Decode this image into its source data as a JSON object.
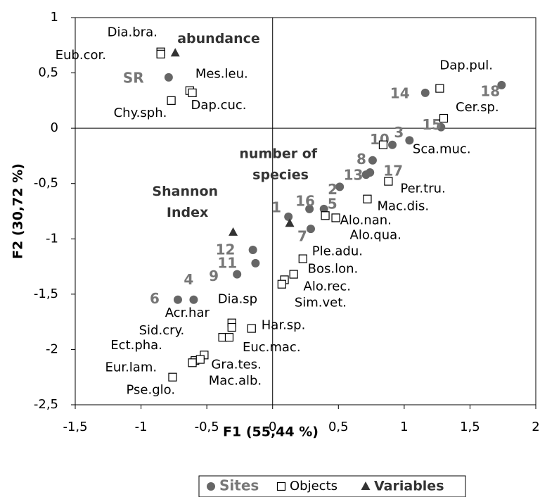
{
  "chart_data": {
    "type": "scatter",
    "xlabel": "F1 (55,44 %)",
    "ylabel": "F2 (30,72 %)",
    "xlim": [
      -1.5,
      2
    ],
    "ylim": [
      -2.5,
      1
    ],
    "xticks": [
      {
        "value": -1.5,
        "label": "-1,5"
      },
      -1,
      {
        "value": -0.5,
        "label": "-0,5"
      },
      0,
      {
        "value": 0.5,
        "label": "0,5"
      },
      1,
      {
        "value": 1.5,
        "label": "1,5"
      },
      2
    ],
    "yticks": [
      {
        "value": -2.5,
        "label": "-2,5"
      },
      -2,
      {
        "value": -1.5,
        "label": "-1,5"
      },
      -1,
      {
        "value": -0.5,
        "label": "-0,5"
      },
      0,
      {
        "value": 0.5,
        "label": "0,5"
      },
      1
    ],
    "legend": "bottom",
    "series": [
      {
        "name": "Sites",
        "color": "#666666",
        "marker": "circle",
        "labels": [
          "SR",
          "14",
          "18",
          "15",
          "3",
          "10",
          "8",
          "13",
          "17",
          "2",
          "16",
          "5",
          "1",
          "7",
          "12",
          "11",
          "9",
          "4",
          "6"
        ],
        "x": [
          -0.79,
          1.16,
          1.74,
          1.28,
          1.04,
          0.91,
          0.76,
          0.71,
          0.74,
          0.51,
          0.28,
          0.39,
          0.12,
          0.29,
          -0.15,
          -0.13,
          -0.27,
          -0.6,
          -0.72
        ],
        "values": [
          0.46,
          0.32,
          0.39,
          0.01,
          -0.11,
          -0.15,
          -0.29,
          -0.42,
          -0.4,
          -0.53,
          -0.73,
          -0.73,
          -0.8,
          -0.91,
          -1.1,
          -1.22,
          -1.32,
          -1.55,
          -1.55
        ]
      },
      {
        "name": "Objects",
        "color": "#000000",
        "marker": "square",
        "labels": [
          "Dia.bra.",
          "Eub.cor.",
          "Mes.leu.",
          "Dap.cuc.",
          "Chy.sph.",
          "Dap.pul.",
          "Cer.sp.",
          "Sca.muc.",
          "Per.tru.",
          "Mac.dis.",
          "Alo.nan.",
          "Alo.qua.",
          "Ple.adu.",
          "Bos.lon.",
          "Alo.rec.",
          "Sim.vet.",
          "Dia.sp",
          "Acr.har",
          "Har.sp.",
          "Sid.cry.",
          "Euc.mac.",
          "Ect.pha.",
          "Gra.tes.",
          "Eur.lam.",
          "Mac.alb.",
          "Pse.glo."
        ],
        "x": [
          -0.85,
          -0.85,
          -0.63,
          -0.61,
          -0.77,
          1.27,
          1.3,
          0.84,
          0.88,
          0.72,
          0.4,
          0.48,
          0.23,
          0.16,
          0.09,
          0.07,
          -0.31,
          -0.31,
          -0.16,
          -0.38,
          -0.33,
          -0.59,
          -0.52,
          -0.61,
          -0.55,
          -0.76
        ],
        "values": [
          0.69,
          0.67,
          0.34,
          0.32,
          0.25,
          0.36,
          0.09,
          -0.15,
          -0.48,
          -0.64,
          -0.79,
          -0.81,
          -1.18,
          -1.32,
          -1.37,
          -1.41,
          -1.76,
          -1.8,
          -1.81,
          -1.89,
          -1.89,
          -2.1,
          -2.05,
          -2.12,
          -2.09,
          -2.25
        ]
      },
      {
        "name": "Variables",
        "color": "#333333",
        "marker": "triangle",
        "labels": [
          "abundance",
          "Shannon Index",
          "number of species"
        ],
        "x": [
          -0.74,
          -0.3,
          0.13
        ],
        "values": [
          0.68,
          -0.94,
          -0.86
        ]
      }
    ]
  }
}
